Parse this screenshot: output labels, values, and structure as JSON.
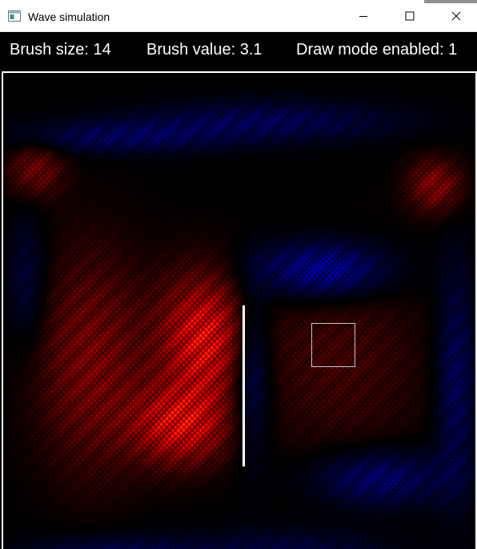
{
  "window": {
    "title": "Wave simulation",
    "controls": {
      "minimize_icon": "minimize-icon",
      "maximize_icon": "maximize-icon",
      "close_icon": "close-icon"
    }
  },
  "status": {
    "brush_size": "Brush size: 14",
    "brush_value": "Brush value: 3.1",
    "draw_mode": "Draw mode enabled: 1"
  },
  "simulation": {
    "positive_color": "#ff2a10",
    "negative_color": "#1420c8",
    "line_color": "#ffffff",
    "cursor_color": "#c8c8c8"
  }
}
